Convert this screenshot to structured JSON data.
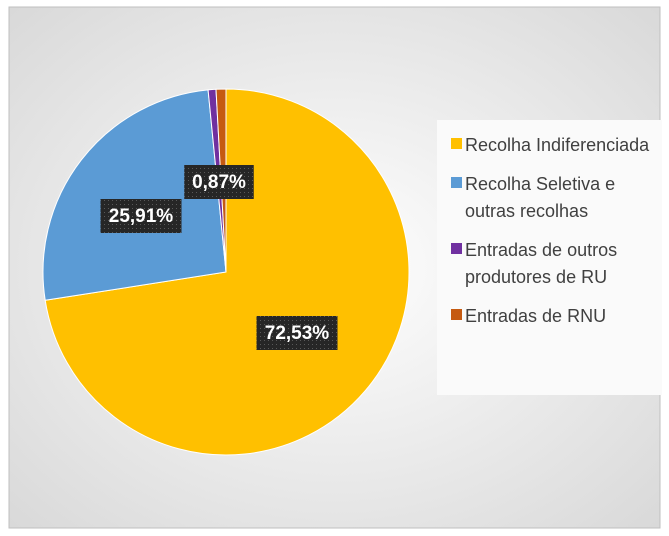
{
  "chart_data": {
    "type": "pie",
    "categories": [
      "Recolha Indiferenciada",
      "Recolha Seletiva e outras recolhas",
      "Entradas de outros produtores de RU",
      "Entradas de RNU"
    ],
    "values": [
      72.53,
      25.91,
      0.69,
      0.87
    ],
    "value_labels": [
      "72,53%",
      "25,91%",
      null,
      "0,87%"
    ],
    "colors": [
      "#FFC000",
      "#5B9BD5",
      "#7030A0",
      "#C55A11"
    ],
    "legend": "right"
  }
}
